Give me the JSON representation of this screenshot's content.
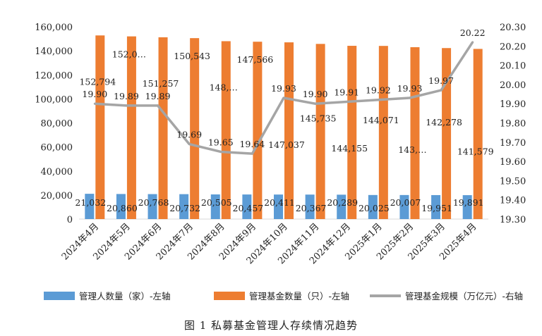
{
  "chart_data": {
    "type": "bar",
    "categories": [
      "2024年4月",
      "2024年5月",
      "2024年6月",
      "2024年7月",
      "2024年8月",
      "2024年9月",
      "2024年10月",
      "2024年11月",
      "2024年12月",
      "2025年1月",
      "2025年2月",
      "2025年3月",
      "2025年4月"
    ],
    "series": [
      {
        "name": "管理人数量（家）-左轴",
        "type": "bar",
        "axis": "left",
        "color": "#5b9bd5",
        "values": [
          21032,
          20860,
          20768,
          20732,
          20505,
          20457,
          20411,
          20367,
          20289,
          20025,
          20007,
          19951,
          19891
        ],
        "labels": [
          "21,032",
          "20,860",
          "20,768",
          "20,732",
          "20,505",
          "20,457",
          "20,411",
          "20,367",
          "20,289",
          "20,025",
          "20,007",
          "19,951",
          "19,891"
        ]
      },
      {
        "name": "管理基金数量（只）-左轴",
        "type": "bar",
        "axis": "left",
        "color": "#ed7d31",
        "values": [
          152794,
          152000,
          151257,
          150543,
          148000,
          147566,
          147037,
          145735,
          144155,
          144071,
          143000,
          142278,
          141579
        ],
        "labels": [
          "152,794",
          "152,0…",
          "151,257",
          "150,543",
          "148,…",
          "147,566",
          "147,037",
          "145,735",
          "144,155",
          "144,071",
          "143,…",
          "142,278",
          "141,579"
        ]
      },
      {
        "name": "管理基金规模（万亿元）-右轴",
        "type": "line",
        "axis": "right",
        "color": "#a5a5a5",
        "values": [
          19.9,
          19.89,
          19.89,
          19.69,
          19.65,
          19.64,
          19.93,
          19.9,
          19.91,
          19.92,
          19.93,
          19.97,
          20.22
        ],
        "labels": [
          "19.90",
          "19.89",
          "19.89",
          "19.69",
          "19.65",
          "19.64",
          "19.93",
          "19.90",
          "19.91",
          "19.92",
          "19.93",
          "19.97",
          "20.22"
        ]
      }
    ],
    "y_left": {
      "min": 0,
      "max": 160000,
      "step": 20000,
      "tick_labels": [
        "0",
        "20,000",
        "40,000",
        "60,000",
        "80,000",
        "100,000",
        "120,000",
        "140,000",
        "160,000"
      ]
    },
    "y_right": {
      "min": 19.3,
      "max": 20.3,
      "step": 0.1,
      "tick_labels": [
        "19.30",
        "19.40",
        "19.50",
        "19.60",
        "19.70",
        "19.80",
        "19.90",
        "20.00",
        "20.10",
        "20.20",
        "20.30"
      ]
    },
    "grid": false,
    "legend_position": "bottom",
    "caption": "图 1   私募基金管理人存续情况趋势"
  }
}
